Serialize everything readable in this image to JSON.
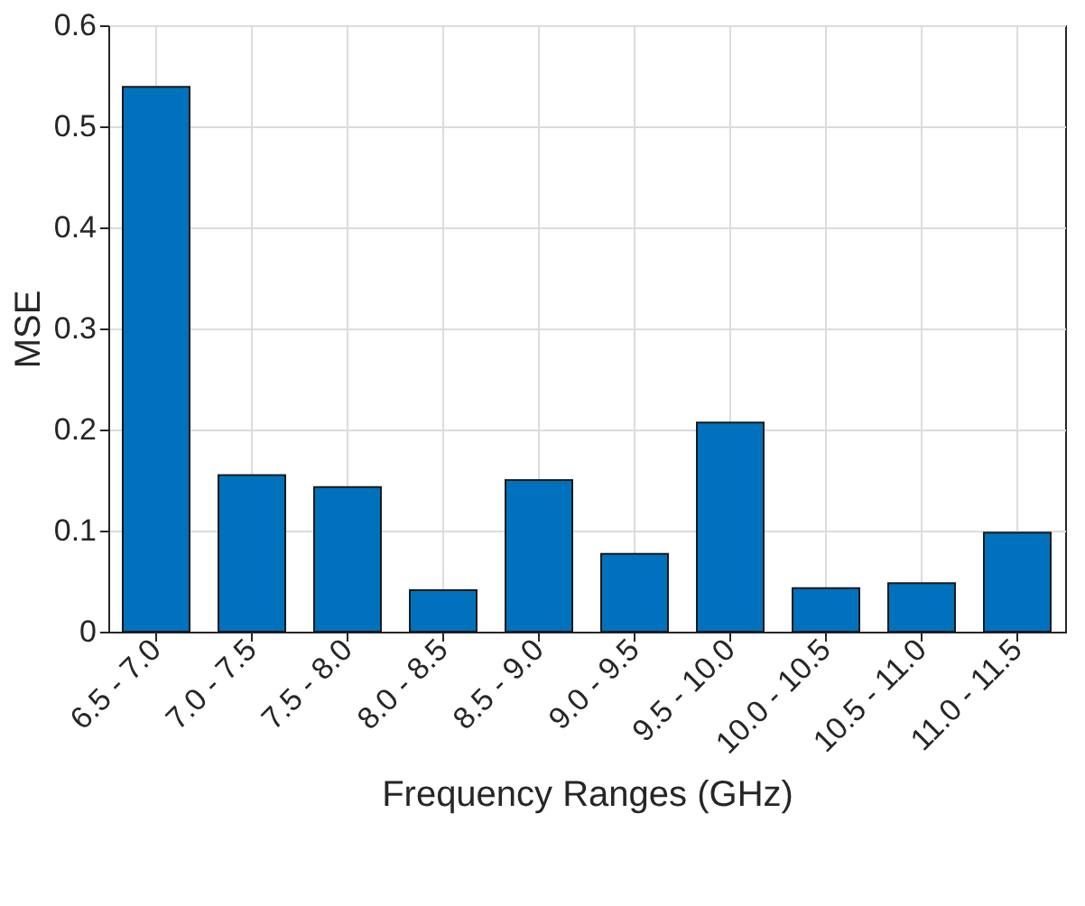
{
  "chart_data": {
    "type": "bar",
    "xlabel": "Frequency Ranges (GHz)",
    "ylabel": "MSE",
    "categories": [
      "6.5 - 7.0",
      "7.0 - 7.5",
      "7.5 - 8.0",
      "8.0 - 8.5",
      "8.5 - 9.0",
      "9.0 - 9.5",
      "9.5 - 10.0",
      "10.0 - 10.5",
      "10.5 - 11.0",
      "11.0 - 11.5"
    ],
    "values": [
      0.539,
      0.155,
      0.143,
      0.041,
      0.15,
      0.077,
      0.207,
      0.043,
      0.048,
      0.098
    ],
    "color": "#0072bd",
    "ylim": [
      0,
      0.6
    ],
    "yticks": [
      0,
      0.1,
      0.2,
      0.3,
      0.4,
      0.5,
      0.6
    ],
    "grid": true
  }
}
